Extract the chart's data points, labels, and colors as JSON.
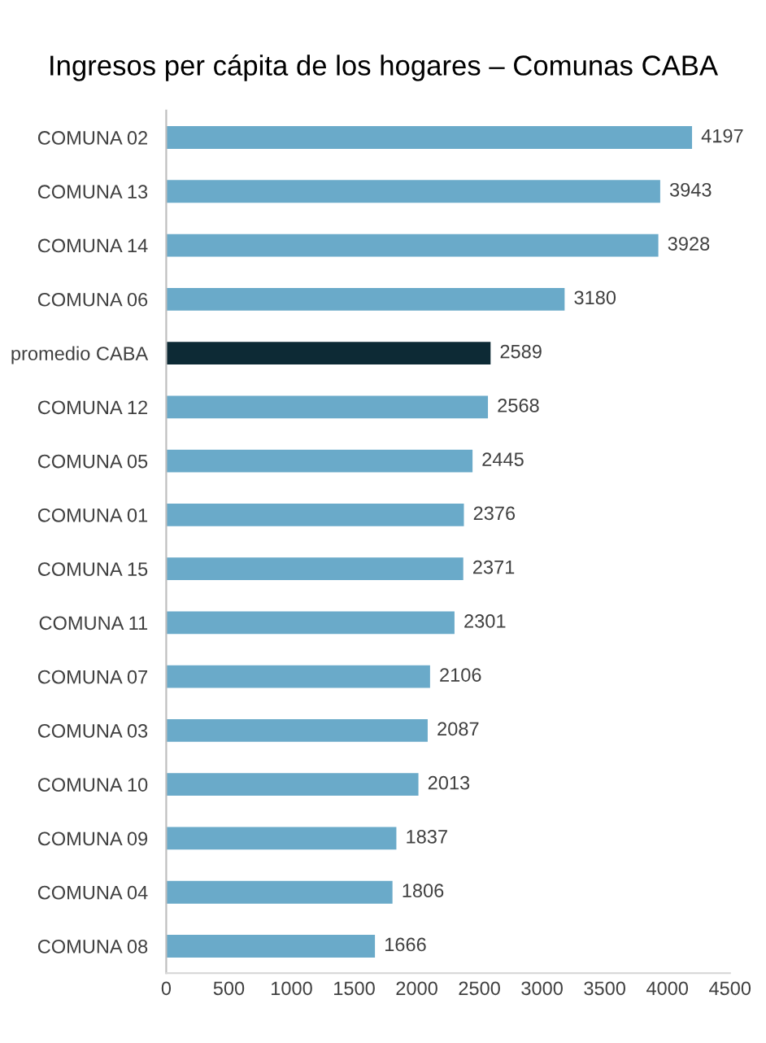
{
  "chart_data": {
    "type": "bar",
    "orientation": "horizontal",
    "title": "Ingresos per cápita de los hogares – Comunas CABA",
    "categories": [
      "COMUNA 02",
      "COMUNA 13",
      "COMUNA 14",
      "COMUNA 06",
      "promedio CABA",
      "COMUNA 12",
      "COMUNA 05",
      "COMUNA 01",
      "COMUNA 15",
      "COMUNA 11",
      "COMUNA 07",
      "COMUNA 03",
      "COMUNA 10",
      "COMUNA 09",
      "COMUNA 04",
      "COMUNA 08"
    ],
    "values": [
      4197,
      3943,
      3928,
      3180,
      2589,
      2568,
      2445,
      2376,
      2371,
      2301,
      2106,
      2087,
      2013,
      1837,
      1806,
      1666
    ],
    "colors": [
      "#6aaac9",
      "#6aaac9",
      "#6aaac9",
      "#6aaac9",
      "#0d2a35",
      "#6aaac9",
      "#6aaac9",
      "#6aaac9",
      "#6aaac9",
      "#6aaac9",
      "#6aaac9",
      "#6aaac9",
      "#6aaac9",
      "#6aaac9",
      "#6aaac9",
      "#6aaac9"
    ],
    "xlim": [
      0,
      4500
    ],
    "xticks": [
      0,
      500,
      1000,
      1500,
      2000,
      2500,
      3000,
      3500,
      4000,
      4500
    ],
    "data_labels": true,
    "grid": false,
    "legend": false
  }
}
